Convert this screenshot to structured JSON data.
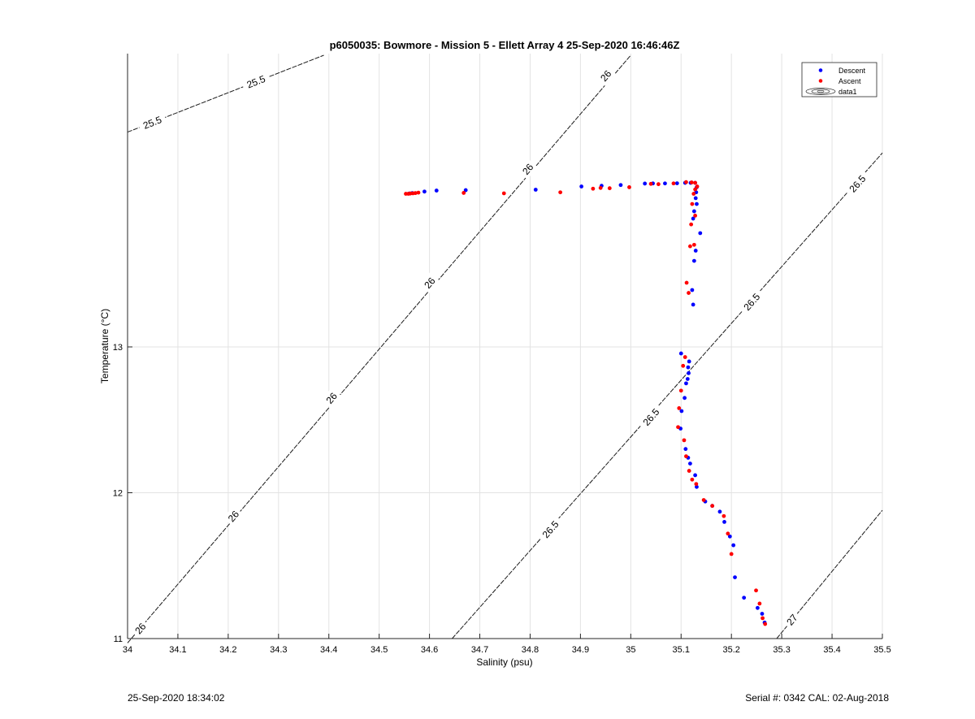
{
  "chart_data": {
    "type": "scatter",
    "title": "p6050035: Bowmore - Mission 5 - Ellett Array 4 25-Sep-2020 16:46:46Z",
    "xlabel": "Salinity (psu)",
    "ylabel": "Temperature (°C)",
    "xlim": [
      34,
      35.5
    ],
    "ylim": [
      11,
      15
    ],
    "x_ticks": [
      "34",
      "34.1",
      "34.2",
      "34.3",
      "34.4",
      "34.5",
      "34.6",
      "34.7",
      "34.8",
      "34.9",
      "35",
      "35.1",
      "35.2",
      "35.3",
      "35.4",
      "35.5"
    ],
    "y_ticks": [
      {
        "value": 11,
        "label": "11"
      },
      {
        "value": 12,
        "label": "12"
      },
      {
        "value": 13,
        "label": "13"
      }
    ],
    "grid": true,
    "legend": {
      "position": "top-right",
      "entries": [
        {
          "label": "Descent",
          "color": "#0000ff",
          "marker": "dot"
        },
        {
          "label": "Ascent",
          "color": "#ff0000",
          "marker": "dot"
        },
        {
          "label": "data1",
          "marker": "contour"
        }
      ]
    },
    "contours": [
      {
        "label": "25.5",
        "points": [
          [
            34.0,
            14.473
          ],
          [
            34.39,
            15.0
          ]
        ],
        "label_positions": [
          [
            34.049,
            14.54
          ],
          [
            34.255,
            14.82
          ]
        ]
      },
      {
        "label": "26",
        "points": [
          [
            34.0,
            10.97
          ],
          [
            35.0,
            15.0
          ]
        ],
        "label_positions": [
          [
            34.025,
            11.07
          ],
          [
            34.21,
            11.84
          ],
          [
            34.405,
            12.65
          ],
          [
            34.6,
            13.44
          ],
          [
            34.795,
            14.22
          ],
          [
            34.95,
            14.86
          ]
        ]
      },
      {
        "label": "26.5",
        "points": [
          [
            34.645,
            11.0
          ],
          [
            35.5,
            14.33
          ]
        ],
        "label_positions": [
          [
            34.84,
            11.75
          ],
          [
            35.04,
            12.52
          ],
          [
            35.24,
            13.31
          ],
          [
            35.45,
            14.12
          ]
        ]
      },
      {
        "label": "27",
        "points": [
          [
            35.29,
            11.0
          ],
          [
            35.5,
            11.88
          ]
        ],
        "label_positions": [
          [
            35.32,
            11.13
          ]
        ]
      }
    ],
    "series": [
      {
        "name": "Descent",
        "color": "#0000ff",
        "x": [
          34.56,
          34.566,
          34.59,
          34.614,
          34.672,
          34.811,
          34.902,
          34.942,
          34.98,
          35.028,
          35.044,
          35.068,
          35.092,
          35.108,
          35.119,
          35.128,
          35.131,
          35.13,
          35.129,
          35.131,
          35.126,
          35.124,
          35.138,
          35.129,
          35.126,
          35.122,
          35.124,
          35.1,
          35.116,
          35.114,
          35.115,
          35.113,
          35.11,
          35.107,
          35.101,
          35.099,
          35.109,
          35.114,
          35.118,
          35.128,
          35.131,
          35.148,
          35.162,
          35.177,
          35.186,
          35.197,
          35.204,
          35.207,
          35.225,
          35.252,
          35.261,
          35.266
        ],
        "y": [
          14.052,
          14.055,
          14.065,
          14.072,
          14.075,
          14.078,
          14.1,
          14.105,
          14.11,
          14.12,
          14.121,
          14.121,
          14.122,
          14.125,
          14.125,
          14.125,
          14.095,
          14.06,
          14.02,
          13.98,
          13.93,
          13.88,
          13.78,
          13.66,
          13.59,
          13.39,
          13.29,
          12.955,
          12.9,
          12.86,
          12.82,
          12.78,
          12.75,
          12.65,
          12.56,
          12.44,
          12.3,
          12.24,
          12.2,
          12.12,
          12.04,
          11.94,
          11.91,
          11.87,
          11.8,
          11.7,
          11.64,
          11.42,
          11.28,
          11.21,
          11.17,
          11.11
        ]
      },
      {
        "name": "Ascent",
        "color": "#ff0000",
        "x": [
          34.553,
          34.558,
          34.562,
          34.567,
          34.572,
          34.578,
          34.668,
          34.748,
          34.86,
          34.925,
          34.94,
          34.958,
          34.997,
          35.04,
          35.055,
          35.085,
          35.11,
          35.121,
          35.128,
          35.132,
          35.128,
          35.125,
          35.122,
          35.128,
          35.12,
          35.126,
          35.118,
          35.111,
          35.115,
          35.108,
          35.104,
          35.1,
          35.096,
          35.094,
          35.106,
          35.11,
          35.116,
          35.122,
          35.13,
          35.145,
          35.162,
          35.185,
          35.193,
          35.2,
          35.249,
          35.256,
          35.262,
          35.267
        ],
        "y": [
          14.05,
          14.05,
          14.052,
          14.053,
          14.055,
          14.058,
          14.056,
          14.053,
          14.06,
          14.085,
          14.09,
          14.088,
          14.095,
          14.118,
          14.116,
          14.121,
          14.13,
          14.128,
          14.125,
          14.1,
          14.08,
          14.05,
          13.98,
          13.9,
          13.84,
          13.7,
          13.69,
          13.44,
          13.37,
          12.93,
          12.87,
          12.7,
          12.58,
          12.45,
          12.36,
          12.25,
          12.15,
          12.09,
          12.06,
          11.95,
          11.91,
          11.84,
          11.72,
          11.58,
          11.33,
          11.24,
          11.14,
          11.1
        ]
      }
    ]
  },
  "footer": {
    "date": "25-Sep-2020 18:34:02",
    "serial": "Serial #: 0342  CAL: 02-Aug-2018"
  }
}
